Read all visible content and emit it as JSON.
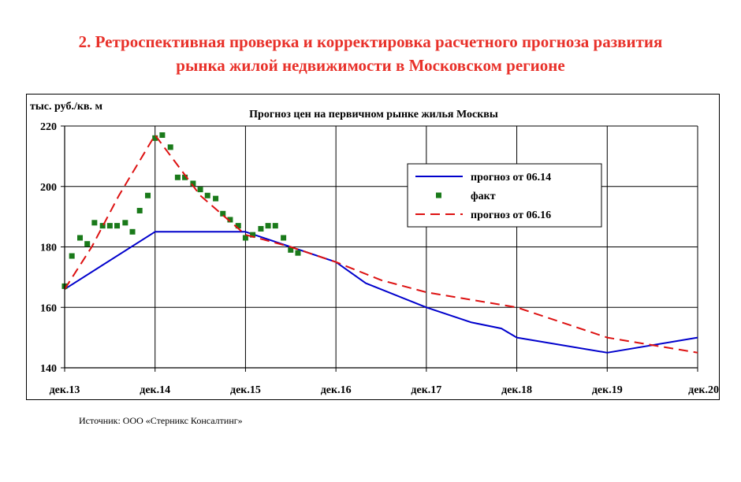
{
  "header": {
    "title_line1": "2. Ретроспективная проверка и корректировка расчетного прогноза развития",
    "title_line2": "рынка жилой недвижимости в Московском регионе"
  },
  "footer": {
    "source": "Источник: ООО «Стерникс Консалтинг»"
  },
  "colors": {
    "title": "#e8312a",
    "forecast_06_14": "#0000cc",
    "fact": "#1a7a1a",
    "forecast_06_16": "#dd1111"
  },
  "chart_data": {
    "type": "line",
    "title": "Прогноз цен на первичном рынке жилья Москвы",
    "ylabel": "тыс. руб./кв. м",
    "xlabel": "",
    "x_ticks": [
      "дек.13",
      "дек.14",
      "дек.15",
      "дек.16",
      "дек.17",
      "дек.18",
      "дек.19",
      "дек.20"
    ],
    "x_range": [
      0,
      7
    ],
    "ylim": [
      140,
      220
    ],
    "y_ticks": [
      140,
      160,
      180,
      200,
      220
    ],
    "grid": true,
    "legend_position": "top-right",
    "legend": [
      "прогноз от 06.14",
      "факт",
      "прогноз от 06.16"
    ],
    "series": [
      {
        "name": "прогноз от 06.14",
        "style": "line",
        "x": [
          0,
          1,
          2,
          3,
          3.33,
          4,
          4.5,
          4.83,
          5,
          6,
          7
        ],
        "y": [
          166,
          185,
          185,
          175,
          168,
          160,
          155,
          153,
          150,
          145,
          150
        ]
      },
      {
        "name": "факт",
        "style": "markers",
        "x": [
          0,
          0.08,
          0.17,
          0.25,
          0.33,
          0.42,
          0.5,
          0.58,
          0.67,
          0.75,
          0.83,
          0.92,
          1.0,
          1.08,
          1.17,
          1.25,
          1.33,
          1.42,
          1.5,
          1.58,
          1.67,
          1.75,
          1.83,
          1.92,
          2.0,
          2.08,
          2.17,
          2.25,
          2.33,
          2.42,
          2.5,
          2.58
        ],
        "y": [
          167,
          177,
          183,
          181,
          188,
          187,
          187,
          187,
          188,
          185,
          192,
          197,
          216,
          217,
          213,
          203,
          203,
          201,
          199,
          197,
          196,
          191,
          189,
          187,
          183,
          184,
          186,
          187,
          187,
          183,
          179,
          178
        ]
      },
      {
        "name": "прогноз от 06.16",
        "style": "dashed",
        "x": [
          0,
          0.3,
          0.6,
          1.0,
          1.5,
          2.0,
          2.5,
          3.0,
          3.5,
          4.0,
          5.0,
          5.5,
          6.0,
          7.0
        ],
        "y": [
          166,
          180,
          197,
          217,
          197,
          184,
          180,
          175,
          169,
          165,
          160,
          155,
          150,
          145
        ]
      }
    ]
  }
}
